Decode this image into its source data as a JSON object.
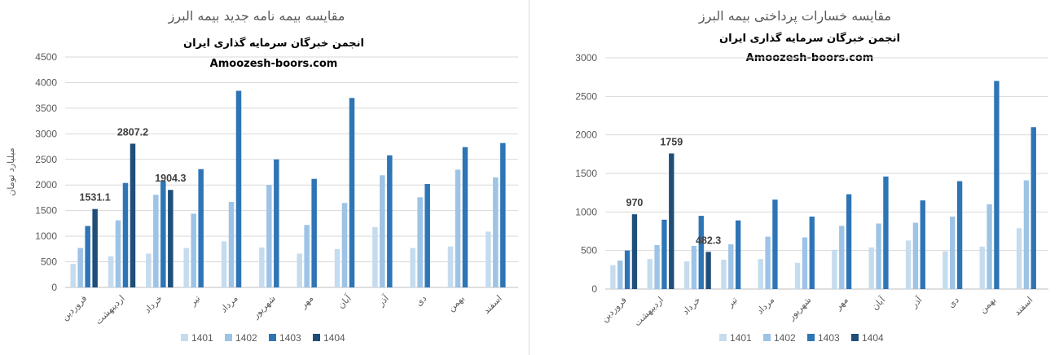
{
  "colors": {
    "1401": "#c5dcee",
    "1402": "#9dc3e6",
    "1403": "#2e75b6",
    "1404": "#1f4e79"
  },
  "chart_data": [
    {
      "type": "bar",
      "title": "مقایسه بیمه نامه جدید بیمه البرز",
      "subtitle_1": "انجمن خبرگان سرمایه گذاری ایران",
      "subtitle_2": "Amoozesh-boors.com",
      "ylabel": "میلیارد تومان",
      "xlabel": "",
      "ylim": [
        0,
        4500
      ],
      "yticks": [
        0,
        500,
        1000,
        1500,
        2000,
        2500,
        3000,
        3500,
        4000,
        4500
      ],
      "grid": true,
      "legend": "bottom",
      "categories": [
        "فروردین",
        "اردیبهشت",
        "خرداد",
        "تیر",
        "مرداد",
        "شهریور",
        "مهر",
        "آبان",
        "آذر",
        "دی",
        "بهمن",
        "اسفند"
      ],
      "series": [
        {
          "name": "1401",
          "values": [
            460,
            610,
            660,
            770,
            900,
            780,
            660,
            750,
            1180,
            770,
            800,
            1090
          ]
        },
        {
          "name": "1402",
          "values": [
            770,
            1310,
            1810,
            1440,
            1670,
            2000,
            1220,
            1650,
            2190,
            1760,
            2300,
            2150
          ]
        },
        {
          "name": "1403",
          "values": [
            1200,
            2040,
            2080,
            2310,
            3840,
            2500,
            2120,
            3700,
            2580,
            2020,
            2740,
            2820
          ]
        },
        {
          "name": "1404",
          "values": [
            1531.1,
            2807.2,
            1904.3,
            null,
            null,
            null,
            null,
            null,
            null,
            null,
            null,
            null
          ]
        }
      ],
      "data_labels": [
        {
          "category": "فروردین",
          "series": "1404",
          "text": "1531.1"
        },
        {
          "category": "اردیبهشت",
          "series": "1404",
          "text": "2807.2"
        },
        {
          "category": "خرداد",
          "series": "1404",
          "text": "1904.3"
        }
      ]
    },
    {
      "type": "bar",
      "title": "مقایسه خسارات پرداختی بیمه البرز",
      "subtitle_1": "انجمن خبرگان سرمایه گذاری ایران",
      "subtitle_2": "Amoozesh-boors.com",
      "ylabel": "",
      "xlabel": "",
      "ylim": [
        0,
        3000
      ],
      "yticks": [
        0,
        500,
        1000,
        1500,
        2000,
        2500,
        3000
      ],
      "grid": true,
      "legend": "bottom",
      "categories": [
        "فروردین",
        "اردیبهشت",
        "خرداد",
        "تیر",
        "مرداد",
        "شهریور",
        "مهر",
        "آبان",
        "آذر",
        "دی",
        "بهمن",
        "اسفند"
      ],
      "series": [
        {
          "name": "1401",
          "values": [
            310,
            390,
            360,
            380,
            390,
            340,
            510,
            540,
            630,
            490,
            550,
            790
          ]
        },
        {
          "name": "1402",
          "values": [
            370,
            570,
            560,
            580,
            680,
            670,
            820,
            850,
            860,
            940,
            1100,
            1410
          ]
        },
        {
          "name": "1403",
          "values": [
            500,
            900,
            950,
            890,
            1160,
            940,
            1230,
            1460,
            1150,
            1400,
            2700,
            2100
          ]
        },
        {
          "name": "1404",
          "values": [
            970,
            1759,
            482.3,
            null,
            null,
            null,
            null,
            null,
            null,
            null,
            null,
            null
          ]
        }
      ],
      "data_labels": [
        {
          "category": "فروردین",
          "series": "1404",
          "text": "970"
        },
        {
          "category": "اردیبهشت",
          "series": "1404",
          "text": "1759"
        },
        {
          "category": "خرداد",
          "series": "1404",
          "text": "482.3"
        }
      ]
    }
  ]
}
